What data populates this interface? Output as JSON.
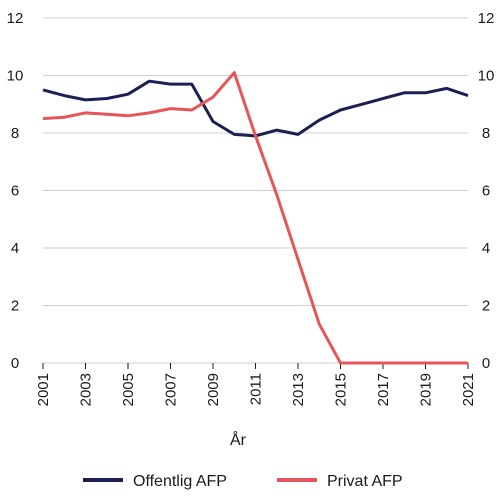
{
  "chart_data": {
    "type": "line",
    "xlabel": "År",
    "ylim": [
      0,
      12
    ],
    "yticks": [
      "0",
      "2",
      "4",
      "6",
      "8",
      "10",
      "12"
    ],
    "xticks": [
      "2001",
      "2003",
      "2005",
      "2007",
      "2009",
      "2011",
      "2013",
      "2015",
      "2017",
      "2019",
      "2021"
    ],
    "x": [
      2001,
      2002,
      2003,
      2004,
      2005,
      2006,
      2007,
      2008,
      2009,
      2010,
      2011,
      2012,
      2013,
      2014,
      2015,
      2016,
      2017,
      2018,
      2019,
      2020,
      2021
    ],
    "grid": true,
    "legend": "bottom",
    "series": [
      {
        "name": "Offentlig AFP",
        "color": "#1c1f52",
        "values": [
          9.5,
          9.3,
          9.15,
          9.2,
          9.35,
          9.8,
          9.7,
          9.7,
          8.4,
          7.95,
          7.9,
          8.1,
          7.95,
          8.45,
          8.8,
          9.0,
          9.2,
          9.4,
          9.4,
          9.55,
          9.3
        ]
      },
      {
        "name": "Privat AFP",
        "color": "#e5565a",
        "values": [
          8.5,
          8.55,
          8.7,
          8.65,
          8.6,
          8.7,
          8.85,
          8.8,
          9.25,
          10.1,
          7.9,
          5.85,
          3.6,
          1.35,
          0,
          0,
          0,
          0,
          0,
          0,
          0
        ]
      }
    ]
  }
}
